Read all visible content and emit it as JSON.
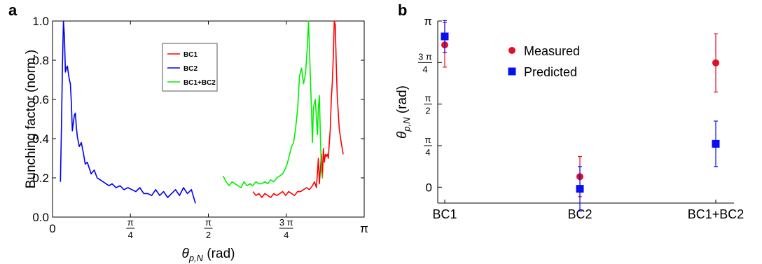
{
  "panels": {
    "a": {
      "label": "a",
      "chart_data": {
        "type": "line",
        "ylabel": "Bunching factor (norm.)",
        "xlabel": "θp,N (rad)",
        "xlabel_main": "θ",
        "xlabel_sub": "p,N",
        "xlabel_unit": " (rad)",
        "xlim": [
          0,
          3.14159
        ],
        "ylim": [
          0,
          1.0
        ],
        "xticks": [
          {
            "v": 0,
            "n": "0"
          },
          {
            "v": 0.7854,
            "n": "π",
            "d": "4"
          },
          {
            "v": 1.5708,
            "n": "π",
            "d": "2"
          },
          {
            "v": 2.3562,
            "n": "3 π",
            "d": "4"
          },
          {
            "v": 3.14159,
            "n": "π"
          }
        ],
        "yticks": [
          "0.0",
          "0.2",
          "0.4",
          "0.6",
          "0.8",
          "1.0"
        ],
        "ytick_values": [
          0,
          0.2,
          0.4,
          0.6,
          0.8,
          1.0
        ],
        "legend_position": "top-center",
        "series": [
          {
            "name": "BC1",
            "color": "#ff0000",
            "x": [
              2.02,
              2.05,
              2.08,
              2.11,
              2.14,
              2.17,
              2.2,
              2.23,
              2.26,
              2.29,
              2.32,
              2.35,
              2.38,
              2.41,
              2.44,
              2.47,
              2.5,
              2.53,
              2.56,
              2.59,
              2.62,
              2.64,
              2.66,
              2.68,
              2.69,
              2.71,
              2.72,
              2.73,
              2.74,
              2.75,
              2.76,
              2.77,
              2.78,
              2.79,
              2.8,
              2.81,
              2.82,
              2.83,
              2.84,
              2.85,
              2.86,
              2.87,
              2.89,
              2.91,
              2.93
            ],
            "y": [
              0.13,
              0.11,
              0.12,
              0.1,
              0.12,
              0.11,
              0.1,
              0.12,
              0.11,
              0.12,
              0.13,
              0.11,
              0.13,
              0.12,
              0.11,
              0.13,
              0.13,
              0.14,
              0.15,
              0.14,
              0.16,
              0.18,
              0.15,
              0.3,
              0.17,
              0.32,
              0.2,
              0.35,
              0.28,
              0.32,
              0.31,
              0.32,
              0.3,
              0.38,
              0.45,
              0.6,
              0.68,
              0.82,
              1.0,
              0.98,
              0.78,
              0.62,
              0.45,
              0.38,
              0.32
            ]
          },
          {
            "name": "BC2",
            "color": "#0000ee",
            "x": [
              0.08,
              0.09,
              0.1,
              0.11,
              0.12,
              0.13,
              0.14,
              0.15,
              0.16,
              0.17,
              0.18,
              0.19,
              0.2,
              0.21,
              0.22,
              0.23,
              0.24,
              0.25,
              0.27,
              0.29,
              0.31,
              0.33,
              0.35,
              0.37,
              0.39,
              0.42,
              0.45,
              0.48,
              0.51,
              0.54,
              0.57,
              0.6,
              0.64,
              0.68,
              0.72,
              0.76,
              0.8,
              0.84,
              0.88,
              0.92,
              0.96,
              1.0,
              1.04,
              1.08,
              1.12,
              1.16,
              1.2,
              1.24,
              1.28,
              1.32,
              1.36,
              1.4,
              1.44
            ],
            "y": [
              0.18,
              0.45,
              0.78,
              1.0,
              0.92,
              0.74,
              0.76,
              0.77,
              0.73,
              0.7,
              0.68,
              0.58,
              0.44,
              0.48,
              0.52,
              0.53,
              0.46,
              0.41,
              0.36,
              0.38,
              0.33,
              0.27,
              0.28,
              0.25,
              0.22,
              0.24,
              0.2,
              0.19,
              0.18,
              0.17,
              0.16,
              0.17,
              0.15,
              0.16,
              0.14,
              0.15,
              0.14,
              0.13,
              0.15,
              0.12,
              0.12,
              0.11,
              0.14,
              0.11,
              0.13,
              0.1,
              0.12,
              0.14,
              0.11,
              0.15,
              0.12,
              0.14,
              0.07
            ]
          },
          {
            "name": "BC1+BC2",
            "color": "#00ee00",
            "x": [
              1.72,
              1.75,
              1.78,
              1.81,
              1.84,
              1.87,
              1.9,
              1.93,
              1.96,
              1.99,
              2.02,
              2.05,
              2.08,
              2.11,
              2.14,
              2.17,
              2.2,
              2.23,
              2.26,
              2.29,
              2.32,
              2.35,
              2.37,
              2.39,
              2.41,
              2.43,
              2.45,
              2.47,
              2.49,
              2.51,
              2.53,
              2.55,
              2.57,
              2.58,
              2.59,
              2.6,
              2.61,
              2.62,
              2.63,
              2.64,
              2.65,
              2.66,
              2.67,
              2.68,
              2.69,
              2.7,
              2.71,
              2.72
            ],
            "y": [
              0.21,
              0.18,
              0.16,
              0.18,
              0.17,
              0.16,
              0.15,
              0.18,
              0.16,
              0.17,
              0.16,
              0.18,
              0.17,
              0.17,
              0.18,
              0.17,
              0.19,
              0.18,
              0.2,
              0.21,
              0.22,
              0.25,
              0.28,
              0.32,
              0.36,
              0.38,
              0.45,
              0.55,
              0.72,
              0.76,
              0.68,
              0.73,
              0.88,
              1.0,
              0.85,
              0.7,
              0.55,
              0.38,
              0.56,
              0.58,
              0.6,
              0.5,
              0.42,
              0.56,
              0.62,
              0.42,
              0.24,
              0.2
            ]
          }
        ]
      }
    },
    "b": {
      "label": "b",
      "chart_data": {
        "type": "scatter",
        "ylabel": "θp,N (rad)",
        "ylabel_main": "θ",
        "ylabel_sub": "p,N",
        "ylabel_unit": " (rad)",
        "categories": [
          "BC1",
          "BC2",
          "BC1+BC2"
        ],
        "ylim": [
          -0.3,
          3.14159
        ],
        "yticks": [
          {
            "v": 0,
            "n": "0"
          },
          {
            "v": 0.7854,
            "n": "π",
            "d": "4"
          },
          {
            "v": 1.5708,
            "n": "π",
            "d": "2"
          },
          {
            "v": 2.3562,
            "n": "3 π",
            "d": "4"
          },
          {
            "v": 3.14159,
            "n": "π"
          }
        ],
        "legend_position": "top-center",
        "series": [
          {
            "name": "Measured",
            "color": "#e0102a",
            "marker": "circle",
            "values": [
              2.69,
              0.2,
              2.35
            ],
            "err": [
              0.42,
              0.38,
              0.55
            ]
          },
          {
            "name": "Predicted",
            "color": "#0a10f0",
            "marker": "square",
            "values": [
              2.85,
              -0.03,
              0.82
            ],
            "err": [
              0.3,
              0.42,
              0.43
            ]
          }
        ]
      }
    }
  }
}
